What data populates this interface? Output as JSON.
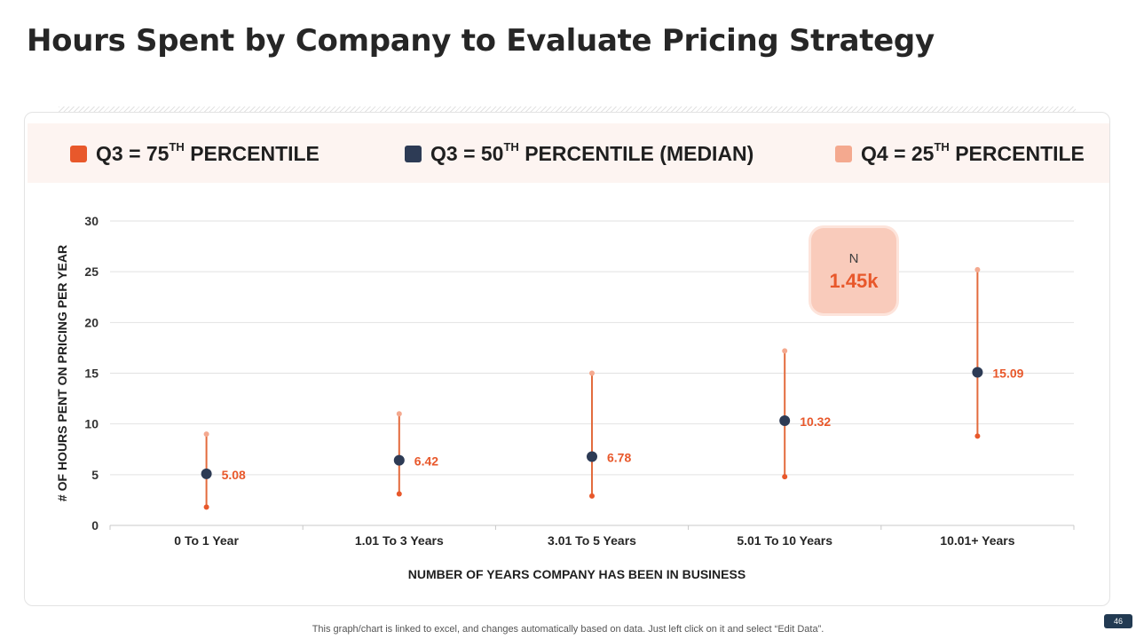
{
  "page_title": "Hours Spent by Company to Evaluate Pricing Strategy",
  "legend": [
    {
      "prefix": "Q3 = 75",
      "sup": "TH",
      "suffix": " PERCENTILE",
      "color": "#e8582b"
    },
    {
      "prefix": "Q3 = 50",
      "sup": "TH",
      "suffix": " PERCENTILE (MEDIAN)",
      "color": "#2d3b55"
    },
    {
      "prefix": "Q4 = 25",
      "sup": "TH",
      "suffix": " PERCENTILE",
      "color": "#f4a98f"
    }
  ],
  "badge": {
    "label": "N",
    "value": "1.45k"
  },
  "footer_note": "This graph/chart is linked to excel, and changes automatically based on data. Just left click on it and select “Edit Data”.",
  "page_number": "46",
  "chart_data": {
    "type": "scatter",
    "title": "",
    "xlabel": "NUMBER OF YEARS COMPANY HAS BEEN IN BUSINESS",
    "ylabel": "# OF HOURS PENT ON PRICING PER YEAR",
    "ylim": [
      0,
      30
    ],
    "yticks": [
      0,
      5,
      10,
      15,
      20,
      25,
      30
    ],
    "categories": [
      "0 To 1 Year",
      "1.01  To 3 Years",
      "3.01  To 5 Years",
      "5.01  To 10 Years",
      "10.01+ Years"
    ],
    "series": [
      {
        "name": "75th Percentile",
        "values": [
          9,
          11,
          15,
          17.2,
          25.2
        ],
        "color": "#f4a98f"
      },
      {
        "name": "Median",
        "values": [
          5.08,
          6.42,
          6.78,
          10.32,
          15.09
        ],
        "color": "#2d3b55",
        "labels": [
          "5.08",
          "6.42",
          "6.78",
          "10.32",
          "15.09"
        ]
      },
      {
        "name": "25th Percentile",
        "values": [
          1.8,
          3.1,
          2.9,
          4.8,
          8.8
        ],
        "color": "#e8582b"
      }
    ],
    "grid": true
  }
}
